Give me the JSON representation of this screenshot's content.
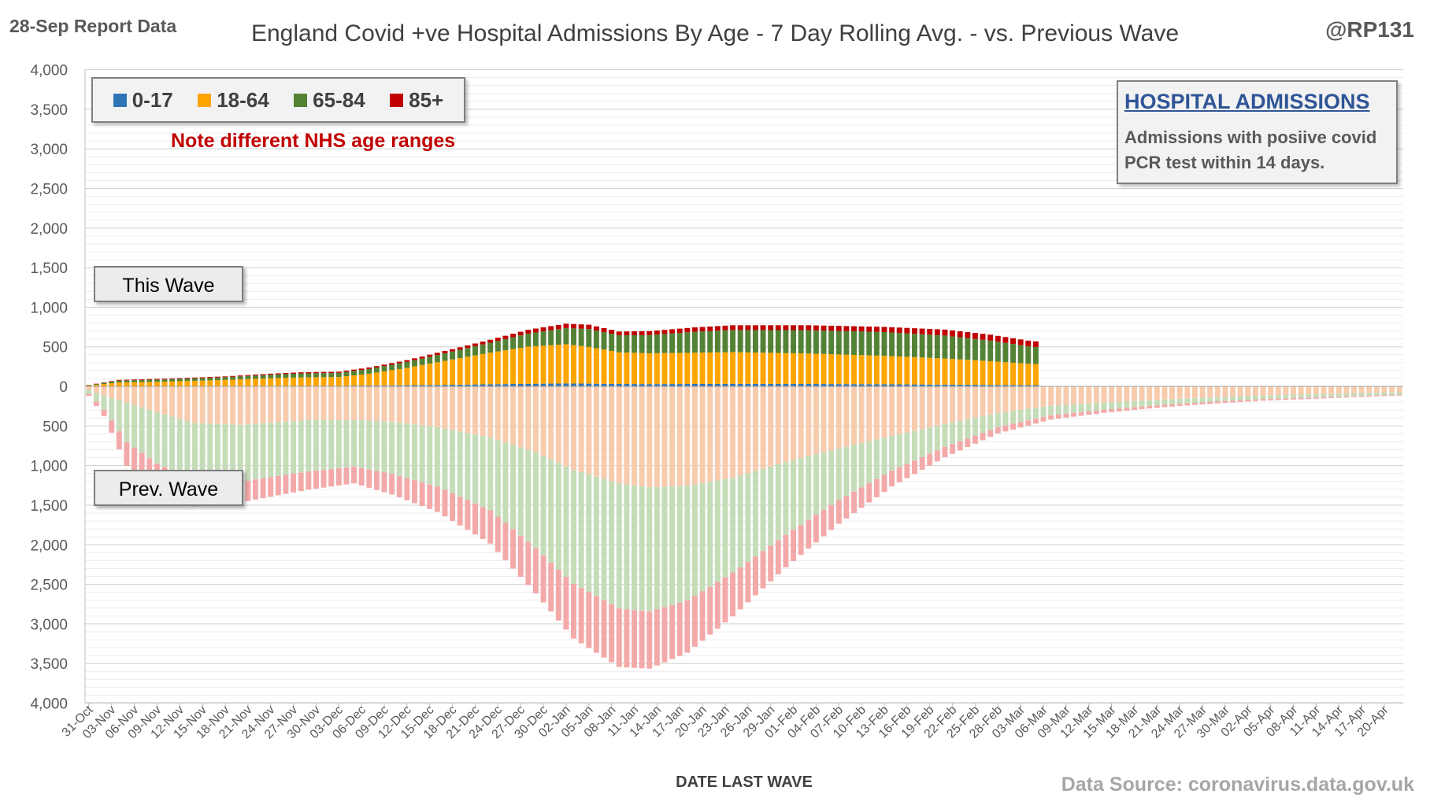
{
  "header": {
    "corner_note": "28-Sep Report Data",
    "title": "England Covid +ve Hospital Admissions By Age - 7 Day Rolling Avg. - vs. Previous Wave",
    "handle": "@RP131"
  },
  "legend": [
    {
      "label": "0-17",
      "color": "#2e75b6"
    },
    {
      "label": "18-64",
      "color": "#ffa500"
    },
    {
      "label": "65-84",
      "color": "#548235"
    },
    {
      "label": "85+",
      "color": "#c00000"
    }
  ],
  "note": "Note different NHS  age ranges",
  "info_box": {
    "title": "HOSPITAL ADMISSIONS",
    "line1": "Admissions with posiive covid",
    "line2": "PCR test within 14 days."
  },
  "labels": {
    "this_wave": "This Wave",
    "prev_wave": "Prev. Wave"
  },
  "footer": {
    "x_axis_title": "DATE LAST WAVE",
    "source": "Data Source: coronavirus.data.gov.uk"
  },
  "colors": {
    "this_wave": {
      "0-17": "#2e75b6",
      "18-64": "#ffa500",
      "65-84": "#548235",
      "85+": "#c00000"
    },
    "prev_wave": {
      "0-17": "#bdd7ee",
      "18-64": "#f8cbad",
      "65-84": "#c5dcb8",
      "85+": "#f4a9a9"
    }
  },
  "chart_data": {
    "type": "bar",
    "stacked": true,
    "diverging": true,
    "x_start": "31-Oct",
    "n_days": 174,
    "x_tick_labels": [
      "31-Oct",
      "03-Nov",
      "06-Nov",
      "09-Nov",
      "12-Nov",
      "15-Nov",
      "18-Nov",
      "21-Nov",
      "24-Nov",
      "27-Nov",
      "30-Nov",
      "03-Dec",
      "06-Dec",
      "09-Dec",
      "12-Dec",
      "15-Dec",
      "18-Dec",
      "21-Dec",
      "24-Dec",
      "27-Dec",
      "30-Dec",
      "02-Jan",
      "05-Jan",
      "08-Jan",
      "11-Jan",
      "14-Jan",
      "17-Jan",
      "20-Jan",
      "23-Jan",
      "26-Jan",
      "29-Jan",
      "01-Feb",
      "04-Feb",
      "07-Feb",
      "10-Feb",
      "13-Feb",
      "16-Feb",
      "19-Feb",
      "22-Feb",
      "25-Feb",
      "28-Feb",
      "03-Mar",
      "06-Mar",
      "09-Mar",
      "12-Mar",
      "15-Mar",
      "18-Mar",
      "21-Mar",
      "24-Mar",
      "27-Mar",
      "30-Mar",
      "02-Apr",
      "05-Apr",
      "08-Apr",
      "11-Apr",
      "14-Apr",
      "17-Apr",
      "20-Apr"
    ],
    "y_tick_labels": [
      "4,000",
      "3,500",
      "3,000",
      "2,500",
      "2,000",
      "1,500",
      "1,000",
      "500",
      "0",
      "500",
      "1,000",
      "1,500",
      "2,000",
      "2,500",
      "3,000",
      "3,500",
      "4,000"
    ],
    "ylim": [
      -4000,
      4000
    ],
    "xlabel": "DATE LAST WAVE",
    "this_wave_keypoints": {
      "description": "x = day index from 31-Oct, values = [0-17, 18-64, 65-84, 85+]",
      "points": [
        {
          "x": 0,
          "values": [
            2,
            8,
            5,
            2
          ]
        },
        {
          "x": 4,
          "values": [
            4,
            45,
            25,
            8
          ]
        },
        {
          "x": 10,
          "values": [
            5,
            55,
            28,
            9
          ]
        },
        {
          "x": 18,
          "values": [
            6,
            75,
            35,
            10
          ]
        },
        {
          "x": 24,
          "values": [
            7,
            95,
            45,
            13
          ]
        },
        {
          "x": 28,
          "values": [
            8,
            105,
            50,
            15
          ]
        },
        {
          "x": 33,
          "values": [
            8,
            110,
            52,
            16
          ]
        },
        {
          "x": 37,
          "values": [
            10,
            150,
            60,
            18
          ]
        },
        {
          "x": 42,
          "values": [
            14,
            220,
            75,
            22
          ]
        },
        {
          "x": 48,
          "values": [
            20,
            320,
            100,
            30
          ]
        },
        {
          "x": 53,
          "values": [
            26,
            400,
            125,
            38
          ]
        },
        {
          "x": 58,
          "values": [
            32,
            470,
            165,
            48
          ]
        },
        {
          "x": 63,
          "values": [
            36,
            495,
            205,
            55
          ]
        },
        {
          "x": 66,
          "values": [
            34,
            465,
            225,
            55
          ]
        },
        {
          "x": 70,
          "values": [
            30,
            400,
            215,
            48
          ]
        },
        {
          "x": 74,
          "values": [
            28,
            390,
            230,
            50
          ]
        },
        {
          "x": 80,
          "values": [
            30,
            395,
            265,
            55
          ]
        },
        {
          "x": 85,
          "values": [
            32,
            400,
            280,
            60
          ]
        },
        {
          "x": 95,
          "values": [
            30,
            385,
            295,
            62
          ]
        },
        {
          "x": 105,
          "values": [
            26,
            360,
            300,
            65
          ]
        },
        {
          "x": 113,
          "values": [
            22,
            330,
            290,
            75
          ]
        },
        {
          "x": 119,
          "values": [
            18,
            300,
            260,
            75
          ]
        },
        {
          "x": 124,
          "values": [
            16,
            270,
            220,
            72
          ]
        },
        {
          "x": 125,
          "values": [
            15,
            268,
            215,
            70
          ]
        }
      ]
    },
    "prev_wave_keypoints": {
      "description": "x = day index from 31-Oct, values = [0-17, 18-64, 65-84, 85+] shown below the axis",
      "points": [
        {
          "x": 0,
          "values": [
            5,
            40,
            50,
            25
          ]
        },
        {
          "x": 2,
          "values": [
            5,
            110,
            180,
            80
          ]
        },
        {
          "x": 5,
          "values": [
            5,
            200,
            500,
            300
          ]
        },
        {
          "x": 9,
          "values": [
            5,
            320,
            650,
            450
          ]
        },
        {
          "x": 14,
          "values": [
            5,
            460,
            720,
            330
          ]
        },
        {
          "x": 20,
          "values": [
            5,
            480,
            720,
            260
          ]
        },
        {
          "x": 29,
          "values": [
            5,
            420,
            650,
            230
          ]
        },
        {
          "x": 35,
          "values": [
            5,
            420,
            590,
            210
          ]
        },
        {
          "x": 40,
          "values": [
            5,
            440,
            660,
            260
          ]
        },
        {
          "x": 46,
          "values": [
            5,
            510,
            750,
            320
          ]
        },
        {
          "x": 53,
          "values": [
            5,
            640,
            920,
            420
          ]
        },
        {
          "x": 59,
          "values": [
            5,
            830,
            1210,
            570
          ]
        },
        {
          "x": 64,
          "values": [
            5,
            1050,
            1440,
            690
          ]
        },
        {
          "x": 70,
          "values": [
            5,
            1220,
            1580,
            740
          ]
        },
        {
          "x": 74,
          "values": [
            5,
            1270,
            1570,
            720
          ]
        },
        {
          "x": 79,
          "values": [
            5,
            1250,
            1450,
            660
          ]
        },
        {
          "x": 85,
          "values": [
            5,
            1150,
            1200,
            550
          ]
        },
        {
          "x": 92,
          "values": [
            5,
            950,
            920,
            410
          ]
        },
        {
          "x": 99,
          "values": [
            5,
            780,
            650,
            300
          ]
        },
        {
          "x": 106,
          "values": [
            5,
            620,
            440,
            200
          ]
        },
        {
          "x": 113,
          "values": [
            5,
            470,
            290,
            130
          ]
        },
        {
          "x": 120,
          "values": [
            5,
            330,
            180,
            80
          ]
        },
        {
          "x": 127,
          "values": [
            5,
            240,
            120,
            55
          ]
        },
        {
          "x": 134,
          "values": [
            5,
            200,
            90,
            40
          ]
        },
        {
          "x": 141,
          "values": [
            5,
            165,
            70,
            30
          ]
        },
        {
          "x": 148,
          "values": [
            5,
            135,
            55,
            25
          ]
        },
        {
          "x": 155,
          "values": [
            5,
            110,
            45,
            20
          ]
        },
        {
          "x": 162,
          "values": [
            5,
            95,
            40,
            17
          ]
        },
        {
          "x": 168,
          "values": [
            5,
            80,
            33,
            14
          ]
        },
        {
          "x": 173,
          "values": [
            5,
            70,
            30,
            12
          ]
        }
      ]
    }
  }
}
